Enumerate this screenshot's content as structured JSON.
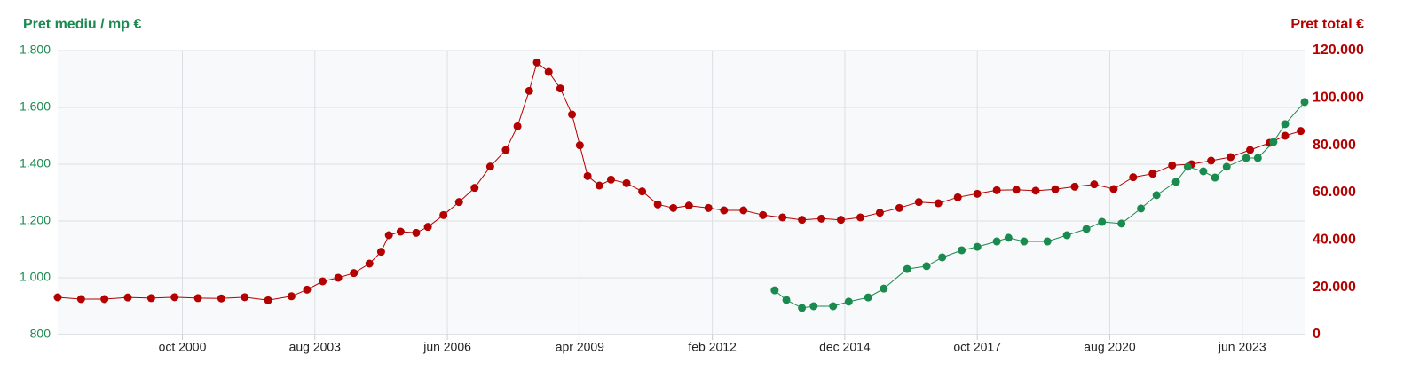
{
  "chart_data": {
    "type": "line",
    "y_title": "Pret mediu / mp €",
    "y2_title": "Pret total €",
    "xlim": [
      "1998-02",
      "2024-10"
    ],
    "xticks": [
      {
        "value": "2000-10",
        "label": "oct 2000"
      },
      {
        "value": "2003-08",
        "label": "aug 2003"
      },
      {
        "value": "2006-06",
        "label": "jun 2006"
      },
      {
        "value": "2009-04",
        "label": "apr 2009"
      },
      {
        "value": "2012-02",
        "label": "feb 2012"
      },
      {
        "value": "2014-12",
        "label": "dec 2014"
      },
      {
        "value": "2017-10",
        "label": "oct 2017"
      },
      {
        "value": "2020-08",
        "label": "aug 2020"
      },
      {
        "value": "2023-06",
        "label": "jun 2023"
      }
    ],
    "ylim": [
      800,
      1800
    ],
    "yticks": [
      800,
      {
        "value": 1000,
        "label": "1.000"
      },
      {
        "value": 1200,
        "label": "1.200"
      },
      {
        "value": 1400,
        "label": "1.400"
      },
      {
        "value": 1600,
        "label": "1.600"
      },
      {
        "value": 1800,
        "label": "1.800"
      }
    ],
    "y2lim": [
      0,
      120000
    ],
    "y2ticks": [
      0,
      {
        "value": 20000,
        "label": "20.000"
      },
      {
        "value": 40000,
        "label": "40.000"
      },
      {
        "value": 60000,
        "label": "60.000"
      },
      {
        "value": 80000,
        "label": "80.000"
      },
      {
        "value": 100000,
        "label": "100.000"
      },
      {
        "value": 120000,
        "label": "120.000"
      }
    ],
    "grid": true,
    "series": [
      {
        "color": "#b30000",
        "axis": "y2",
        "x": [
          "1998-02",
          "1998-08",
          "1999-02",
          "1999-08",
          "2000-02",
          "2000-08",
          "2001-02",
          "2001-08",
          "2002-02",
          "2002-08",
          "2003-02",
          "2003-06",
          "2003-10",
          "2004-02",
          "2004-06",
          "2004-10",
          "2005-01",
          "2005-03",
          "2005-06",
          "2005-10",
          "2006-01",
          "2006-05",
          "2006-09",
          "2007-01",
          "2007-05",
          "2007-09",
          "2007-12",
          "2008-03",
          "2008-05",
          "2008-08",
          "2008-11",
          "2009-02",
          "2009-04",
          "2009-06",
          "2009-09",
          "2009-12",
          "2010-04",
          "2010-08",
          "2010-12",
          "2011-04",
          "2011-08",
          "2012-01",
          "2012-05",
          "2012-10",
          "2013-03",
          "2013-08",
          "2014-01",
          "2014-06",
          "2014-11",
          "2015-04",
          "2015-09",
          "2016-02",
          "2016-07",
          "2016-12",
          "2017-05",
          "2017-10",
          "2018-03",
          "2018-08",
          "2019-01",
          "2019-06",
          "2019-11",
          "2020-04",
          "2020-09",
          "2021-02",
          "2021-07",
          "2021-12",
          "2022-05",
          "2022-10",
          "2023-03",
          "2023-08",
          "2024-01",
          "2024-05",
          "2024-09"
        ],
        "values": [
          15750,
          15000,
          15000,
          15700,
          15400,
          15800,
          15400,
          15300,
          15800,
          14500,
          16200,
          19000,
          22500,
          24000,
          26000,
          30000,
          35000,
          42000,
          43500,
          43000,
          45500,
          50500,
          56000,
          62000,
          71000,
          78000,
          88000,
          103000,
          115000,
          111000,
          104000,
          93000,
          80000,
          67000,
          63000,
          65500,
          64000,
          60500,
          55000,
          53500,
          54500,
          53500,
          52500,
          52500,
          50500,
          49500,
          48500,
          49000,
          48500,
          49500,
          51500,
          53500,
          56000,
          55500,
          58000,
          59500,
          61000,
          61200,
          60800,
          61400,
          62500,
          63500,
          61500,
          66500,
          68000,
          71500,
          72000,
          73500,
          75000,
          78000,
          81000,
          84000,
          86000
        ]
      },
      {
        "color": "#1a8a4f",
        "x": [
          "2013-06",
          "2013-09",
          "2014-01",
          "2014-04",
          "2014-09",
          "2015-01",
          "2015-06",
          "2015-10",
          "2016-04",
          "2016-09",
          "2017-01",
          "2017-06",
          "2017-10",
          "2018-03",
          "2018-06",
          "2018-10",
          "2019-04",
          "2019-09",
          "2020-02",
          "2020-06",
          "2020-11",
          "2021-04",
          "2021-08",
          "2022-01",
          "2022-04",
          "2022-08",
          "2022-11",
          "2023-02",
          "2023-07",
          "2023-10",
          "2024-02",
          "2024-05",
          "2024-10"
        ],
        "values": [
          956,
          922,
          894,
          900,
          900,
          916,
          931,
          962,
          1031,
          1041,
          1072,
          1097,
          1109,
          1128,
          1141,
          1128,
          1128,
          1150,
          1172,
          1197,
          1191,
          1244,
          1291,
          1338,
          1391,
          1375,
          1353,
          1391,
          1422,
          1422,
          1478,
          1541,
          1619
        ]
      }
    ]
  }
}
